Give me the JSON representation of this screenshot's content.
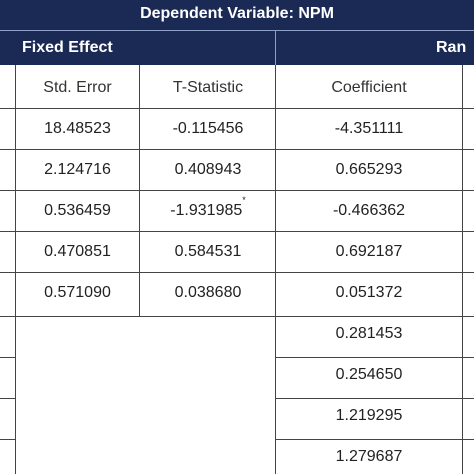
{
  "table": {
    "title": "Dependent Variable: NPM",
    "group_left": "Fixed Effect",
    "group_right": "Ran",
    "columns": [
      "Std. Error",
      "T-Statistic",
      "Coefficient"
    ],
    "rows": [
      {
        "std_error": "18.48523",
        "t_stat": "-0.115456",
        "coef": "-4.351111"
      },
      {
        "std_error": "2.124716",
        "t_stat": "0.408943",
        "coef": "0.665293"
      },
      {
        "std_error": "0.536459",
        "t_stat": "-1.931985",
        "t_mark": "*",
        "coef": "-0.466362"
      },
      {
        "std_error": "0.470851",
        "t_stat": "0.584531",
        "coef": "0.692187"
      },
      {
        "std_error": "0.571090",
        "t_stat": "0.038680",
        "coef": "0.051372"
      },
      {
        "coef": "0.281453"
      },
      {
        "coef": "0.254650"
      },
      {
        "coef": "1.219295"
      },
      {
        "coef": "1.279687"
      }
    ]
  }
}
